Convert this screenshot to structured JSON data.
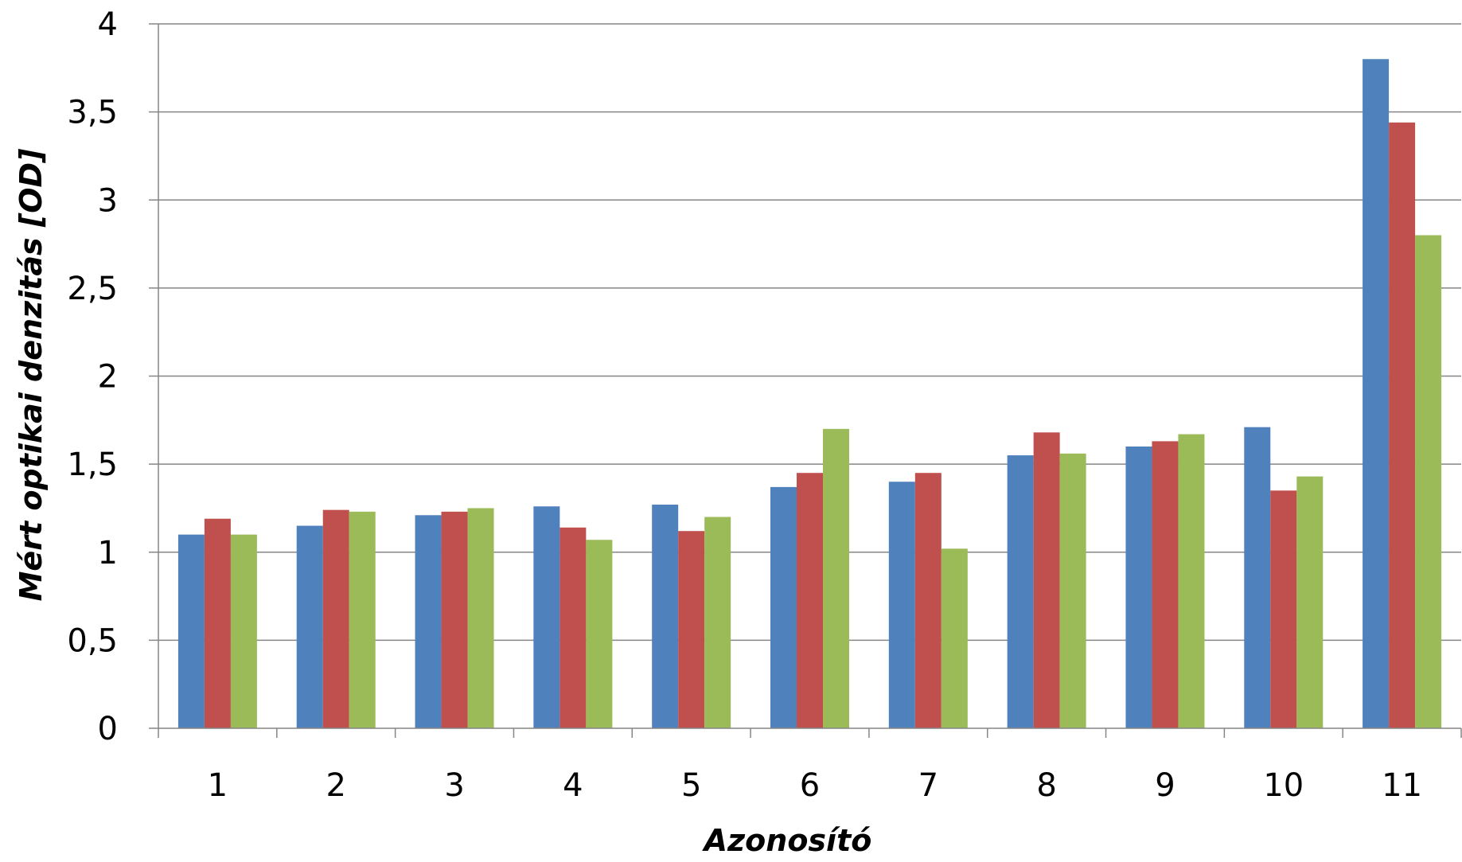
{
  "chart_data": {
    "type": "bar",
    "title": "",
    "xlabel": "Azonosító",
    "ylabel": "Mért optikai denzitás [OD]",
    "categories": [
      "1",
      "2",
      "3",
      "4",
      "5",
      "6",
      "7",
      "8",
      "9",
      "10",
      "11"
    ],
    "series": [
      {
        "color": "#4F81BD",
        "values": [
          1.1,
          1.15,
          1.21,
          1.26,
          1.27,
          1.37,
          1.4,
          1.55,
          1.6,
          1.71,
          3.8
        ]
      },
      {
        "color": "#C0504D",
        "values": [
          1.19,
          1.24,
          1.23,
          1.14,
          1.12,
          1.45,
          1.45,
          1.68,
          1.63,
          1.35,
          3.44
        ]
      },
      {
        "color": "#9BBB59",
        "values": [
          1.1,
          1.23,
          1.25,
          1.07,
          1.2,
          1.7,
          1.02,
          1.56,
          1.67,
          1.43,
          2.8
        ]
      }
    ],
    "ylim": [
      0,
      4
    ],
    "yticks": [
      0,
      0.5,
      1,
      1.5,
      2,
      2.5,
      3,
      3.5,
      4
    ],
    "ytick_labels": [
      "0",
      "0,5",
      "1",
      "1,5",
      "2",
      "2,5",
      "3",
      "3,5",
      "4"
    ],
    "grid": true,
    "legend": "none"
  },
  "colors": {
    "grid": "#868686",
    "axis": "#868686"
  }
}
